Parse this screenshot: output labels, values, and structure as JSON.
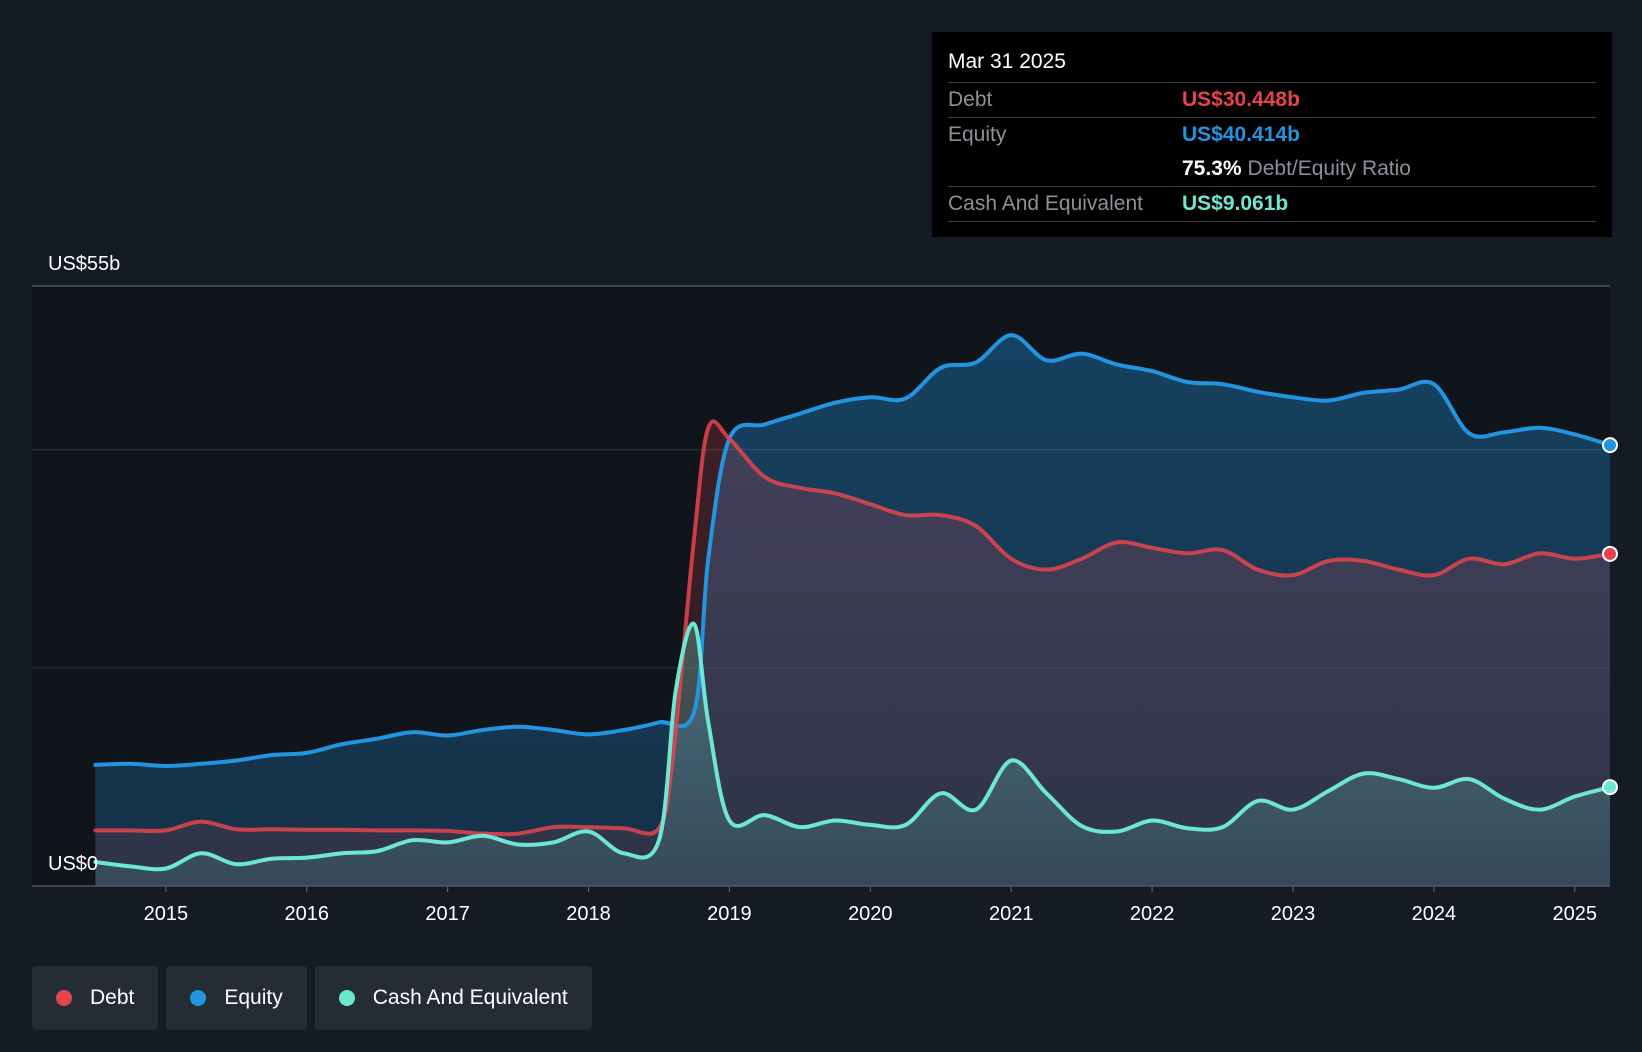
{
  "colors": {
    "debt": "#e5444f",
    "equity": "#2394df",
    "cash": "#6ee6d4",
    "background": "#151b24",
    "plot_background": "#10151c"
  },
  "tooltip": {
    "date": "Mar 31 2025",
    "debt_label": "Debt",
    "debt_value": "US$30.448b",
    "equity_label": "Equity",
    "equity_value": "US$40.414b",
    "ratio_value": "75.3%",
    "ratio_label": "Debt/Equity Ratio",
    "cash_label": "Cash And Equivalent",
    "cash_value": "US$9.061b"
  },
  "legend": [
    {
      "label": "Debt",
      "color": "#e5444f"
    },
    {
      "label": "Equity",
      "color": "#2394df"
    },
    {
      "label": "Cash And Equivalent",
      "color": "#6ee6d4"
    }
  ],
  "chart_data": {
    "type": "area",
    "title": "",
    "xlabel": "",
    "ylabel": "",
    "ylim": [
      0,
      55
    ],
    "xlim": [
      2014.05,
      2025.25
    ],
    "y_top_label": "US$55b",
    "y_bottom_label": "US$0",
    "x_ticks": [
      2015,
      2016,
      2017,
      2018,
      2019,
      2020,
      2021,
      2022,
      2023,
      2024,
      2025
    ],
    "x_tick_labels": [
      "2015",
      "2016",
      "2017",
      "2018",
      "2019",
      "2020",
      "2021",
      "2022",
      "2023",
      "2024",
      "2025"
    ],
    "gridlines": [
      20,
      40
    ],
    "legend_position": "bottom-left",
    "series": [
      {
        "name": "Debt",
        "key": "debt",
        "points": [
          [
            2014.5,
            5.1
          ],
          [
            2014.75,
            5.1
          ],
          [
            2015.0,
            5.1
          ],
          [
            2015.25,
            5.9
          ],
          [
            2015.5,
            5.2
          ],
          [
            2015.75,
            5.2
          ],
          [
            2016.0,
            5.15
          ],
          [
            2016.25,
            5.15
          ],
          [
            2016.5,
            5.1
          ],
          [
            2016.75,
            5.1
          ],
          [
            2017.0,
            5.05
          ],
          [
            2017.25,
            4.8
          ],
          [
            2017.5,
            4.8
          ],
          [
            2017.75,
            5.4
          ],
          [
            2018.0,
            5.4
          ],
          [
            2018.25,
            5.3
          ],
          [
            2018.5,
            5.3
          ],
          [
            2018.6,
            12.0
          ],
          [
            2018.75,
            32.0
          ],
          [
            2018.85,
            42.0
          ],
          [
            2019.0,
            41.0
          ],
          [
            2019.25,
            37.5
          ],
          [
            2019.5,
            36.5
          ],
          [
            2019.75,
            36.0
          ],
          [
            2020.0,
            35.0
          ],
          [
            2020.25,
            34.0
          ],
          [
            2020.5,
            34.0
          ],
          [
            2020.75,
            33.0
          ],
          [
            2021.0,
            30.0
          ],
          [
            2021.25,
            29.0
          ],
          [
            2021.5,
            30.0
          ],
          [
            2021.75,
            31.5
          ],
          [
            2022.0,
            31.0
          ],
          [
            2022.25,
            30.5
          ],
          [
            2022.5,
            30.8
          ],
          [
            2022.75,
            29.0
          ],
          [
            2023.0,
            28.5
          ],
          [
            2023.25,
            29.8
          ],
          [
            2023.5,
            29.8
          ],
          [
            2023.75,
            29.0
          ],
          [
            2024.0,
            28.5
          ],
          [
            2024.25,
            30.0
          ],
          [
            2024.5,
            29.5
          ],
          [
            2024.75,
            30.5
          ],
          [
            2025.0,
            30.0
          ],
          [
            2025.25,
            30.448
          ]
        ]
      },
      {
        "name": "Equity",
        "key": "equity",
        "points": [
          [
            2014.5,
            11.1
          ],
          [
            2014.75,
            11.2
          ],
          [
            2015.0,
            11.0
          ],
          [
            2015.25,
            11.2
          ],
          [
            2015.5,
            11.5
          ],
          [
            2015.75,
            12.0
          ],
          [
            2016.0,
            12.2
          ],
          [
            2016.25,
            13.0
          ],
          [
            2016.5,
            13.5
          ],
          [
            2016.75,
            14.1
          ],
          [
            2017.0,
            13.8
          ],
          [
            2017.25,
            14.3
          ],
          [
            2017.5,
            14.6
          ],
          [
            2017.75,
            14.3
          ],
          [
            2018.0,
            13.9
          ],
          [
            2018.25,
            14.3
          ],
          [
            2018.5,
            15.0
          ],
          [
            2018.75,
            16.0
          ],
          [
            2018.85,
            30.0
          ],
          [
            2019.0,
            41.0
          ],
          [
            2019.25,
            42.3
          ],
          [
            2019.5,
            43.3
          ],
          [
            2019.75,
            44.3
          ],
          [
            2020.0,
            44.8
          ],
          [
            2020.25,
            44.7
          ],
          [
            2020.5,
            47.5
          ],
          [
            2020.75,
            48.0
          ],
          [
            2021.0,
            50.5
          ],
          [
            2021.25,
            48.2
          ],
          [
            2021.5,
            48.8
          ],
          [
            2021.75,
            47.8
          ],
          [
            2022.0,
            47.2
          ],
          [
            2022.25,
            46.2
          ],
          [
            2022.5,
            46.0
          ],
          [
            2022.75,
            45.3
          ],
          [
            2023.0,
            44.8
          ],
          [
            2023.25,
            44.5
          ],
          [
            2023.5,
            45.2
          ],
          [
            2023.75,
            45.5
          ],
          [
            2024.0,
            46.0
          ],
          [
            2024.25,
            41.5
          ],
          [
            2024.5,
            41.6
          ],
          [
            2024.75,
            42.0
          ],
          [
            2025.0,
            41.4
          ],
          [
            2025.25,
            40.414
          ]
        ]
      },
      {
        "name": "Cash And Equivalent",
        "key": "cash",
        "points": [
          [
            2014.5,
            2.2
          ],
          [
            2014.75,
            1.8
          ],
          [
            2015.0,
            1.6
          ],
          [
            2015.25,
            3.0
          ],
          [
            2015.5,
            2.0
          ],
          [
            2015.75,
            2.5
          ],
          [
            2016.0,
            2.6
          ],
          [
            2016.25,
            3.0
          ],
          [
            2016.5,
            3.2
          ],
          [
            2016.75,
            4.2
          ],
          [
            2017.0,
            4.0
          ],
          [
            2017.25,
            4.6
          ],
          [
            2017.5,
            3.8
          ],
          [
            2017.75,
            4.0
          ],
          [
            2018.0,
            5.0
          ],
          [
            2018.25,
            3.0
          ],
          [
            2018.5,
            4.2
          ],
          [
            2018.62,
            18.0
          ],
          [
            2018.75,
            24.0
          ],
          [
            2018.85,
            15.0
          ],
          [
            2019.0,
            6.0
          ],
          [
            2019.25,
            6.5
          ],
          [
            2019.5,
            5.4
          ],
          [
            2019.75,
            6.0
          ],
          [
            2020.0,
            5.6
          ],
          [
            2020.25,
            5.6
          ],
          [
            2020.5,
            8.5
          ],
          [
            2020.75,
            7.0
          ],
          [
            2021.0,
            11.5
          ],
          [
            2021.25,
            8.5
          ],
          [
            2021.5,
            5.5
          ],
          [
            2021.75,
            5.0
          ],
          [
            2022.0,
            6.0
          ],
          [
            2022.25,
            5.3
          ],
          [
            2022.5,
            5.4
          ],
          [
            2022.75,
            7.8
          ],
          [
            2023.0,
            7.0
          ],
          [
            2023.25,
            8.7
          ],
          [
            2023.5,
            10.3
          ],
          [
            2023.75,
            9.8
          ],
          [
            2024.0,
            9.0
          ],
          [
            2024.25,
            9.8
          ],
          [
            2024.5,
            8.0
          ],
          [
            2024.75,
            7.0
          ],
          [
            2025.0,
            8.2
          ],
          [
            2025.25,
            9.061
          ]
        ]
      }
    ]
  }
}
